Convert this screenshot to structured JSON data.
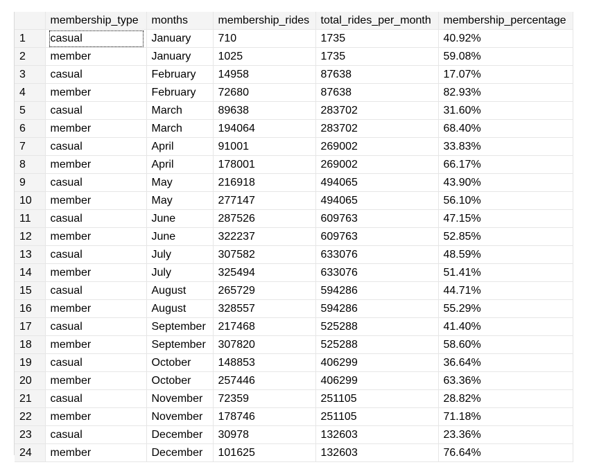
{
  "grid": {
    "columns": [
      "membership_type",
      "months",
      "membership_rides",
      "total_rides_per_month",
      "membership_percentage"
    ],
    "rows": [
      {
        "num": "1",
        "membership_type": "casual",
        "months": "January",
        "membership_rides": "710",
        "total_rides_per_month": "1735",
        "membership_percentage": "40.92%"
      },
      {
        "num": "2",
        "membership_type": "member",
        "months": "January",
        "membership_rides": "1025",
        "total_rides_per_month": "1735",
        "membership_percentage": "59.08%"
      },
      {
        "num": "3",
        "membership_type": "casual",
        "months": "February",
        "membership_rides": "14958",
        "total_rides_per_month": "87638",
        "membership_percentage": "17.07%"
      },
      {
        "num": "4",
        "membership_type": "member",
        "months": "February",
        "membership_rides": "72680",
        "total_rides_per_month": "87638",
        "membership_percentage": "82.93%"
      },
      {
        "num": "5",
        "membership_type": "casual",
        "months": "March",
        "membership_rides": "89638",
        "total_rides_per_month": "283702",
        "membership_percentage": "31.60%"
      },
      {
        "num": "6",
        "membership_type": "member",
        "months": "March",
        "membership_rides": "194064",
        "total_rides_per_month": "283702",
        "membership_percentage": "68.40%"
      },
      {
        "num": "7",
        "membership_type": "casual",
        "months": "April",
        "membership_rides": "91001",
        "total_rides_per_month": "269002",
        "membership_percentage": "33.83%"
      },
      {
        "num": "8",
        "membership_type": "member",
        "months": "April",
        "membership_rides": "178001",
        "total_rides_per_month": "269002",
        "membership_percentage": "66.17%"
      },
      {
        "num": "9",
        "membership_type": "casual",
        "months": "May",
        "membership_rides": "216918",
        "total_rides_per_month": "494065",
        "membership_percentage": "43.90%"
      },
      {
        "num": "10",
        "membership_type": "member",
        "months": "May",
        "membership_rides": "277147",
        "total_rides_per_month": "494065",
        "membership_percentage": "56.10%"
      },
      {
        "num": "11",
        "membership_type": "casual",
        "months": "June",
        "membership_rides": "287526",
        "total_rides_per_month": "609763",
        "membership_percentage": "47.15%"
      },
      {
        "num": "12",
        "membership_type": "member",
        "months": "June",
        "membership_rides": "322237",
        "total_rides_per_month": "609763",
        "membership_percentage": "52.85%"
      },
      {
        "num": "13",
        "membership_type": "casual",
        "months": "July",
        "membership_rides": "307582",
        "total_rides_per_month": "633076",
        "membership_percentage": "48.59%"
      },
      {
        "num": "14",
        "membership_type": "member",
        "months": "July",
        "membership_rides": "325494",
        "total_rides_per_month": "633076",
        "membership_percentage": "51.41%"
      },
      {
        "num": "15",
        "membership_type": "casual",
        "months": "August",
        "membership_rides": "265729",
        "total_rides_per_month": "594286",
        "membership_percentage": "44.71%"
      },
      {
        "num": "16",
        "membership_type": "member",
        "months": "August",
        "membership_rides": "328557",
        "total_rides_per_month": "594286",
        "membership_percentage": "55.29%"
      },
      {
        "num": "17",
        "membership_type": "casual",
        "months": "September",
        "membership_rides": "217468",
        "total_rides_per_month": "525288",
        "membership_percentage": "41.40%"
      },
      {
        "num": "18",
        "membership_type": "member",
        "months": "September",
        "membership_rides": "307820",
        "total_rides_per_month": "525288",
        "membership_percentage": "58.60%"
      },
      {
        "num": "19",
        "membership_type": "casual",
        "months": "October",
        "membership_rides": "148853",
        "total_rides_per_month": "406299",
        "membership_percentage": "36.64%"
      },
      {
        "num": "20",
        "membership_type": "member",
        "months": "October",
        "membership_rides": "257446",
        "total_rides_per_month": "406299",
        "membership_percentage": "63.36%"
      },
      {
        "num": "21",
        "membership_type": "casual",
        "months": "November",
        "membership_rides": "72359",
        "total_rides_per_month": "251105",
        "membership_percentage": "28.82%"
      },
      {
        "num": "22",
        "membership_type": "member",
        "months": "November",
        "membership_rides": "178746",
        "total_rides_per_month": "251105",
        "membership_percentage": "71.18%"
      },
      {
        "num": "23",
        "membership_type": "casual",
        "months": "December",
        "membership_rides": "30978",
        "total_rides_per_month": "132603",
        "membership_percentage": "23.36%"
      },
      {
        "num": "24",
        "membership_type": "member",
        "months": "December",
        "membership_rides": "101625",
        "total_rides_per_month": "132603",
        "membership_percentage": "76.64%"
      }
    ],
    "selected_cell": {
      "row": 0,
      "column": "membership_type"
    },
    "colors": {
      "header_bg": "#f4f4f4",
      "gridline": "#e6e6e6",
      "background": "#ffffff"
    }
  }
}
